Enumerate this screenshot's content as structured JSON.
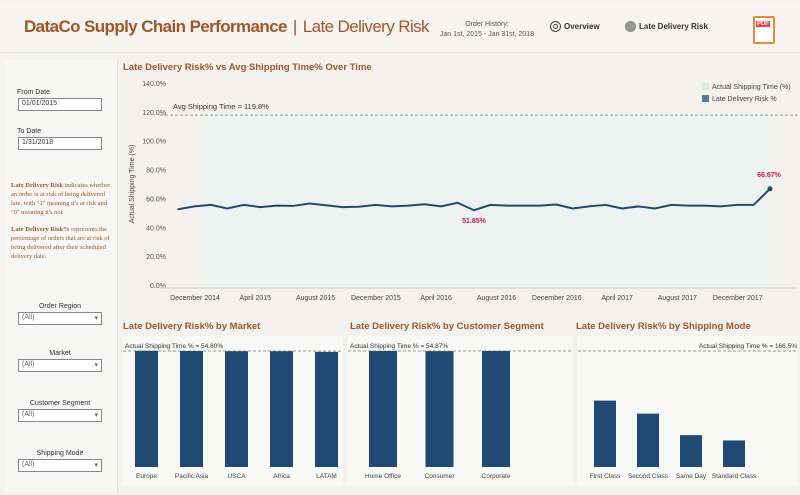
{
  "header": {
    "title": "DataCo Supply Chain Performance",
    "separator": "|",
    "subtitle": "Late Delivery Risk",
    "order_history_label": "Order History:",
    "order_history_range": "Jan 1st, 2015 - Jan 31st, 2018",
    "nav_overview": "Overview",
    "nav_late_delivery": "Late Delivery Risk",
    "pdf_icon_text": "PDF"
  },
  "filters": {
    "from_date_label": "From Date",
    "from_date": "01/01/2015",
    "to_date_label": "To Date",
    "to_date": "1/31/2018",
    "dropdowns": [
      {
        "label": "Order Region",
        "value": "(All)"
      },
      {
        "label": "Market",
        "value": "(All)"
      },
      {
        "label": "Customer Segment",
        "value": "(All)"
      },
      {
        "label": "Shipping Mode",
        "value": "(All)"
      }
    ]
  },
  "notes": {
    "n1_bold": "Late Delivery Risk",
    "n1_text": " indicates whether an order is at risk of being delivered late, with \"1\" meaning it's at risk and \"0\" meaning it's not",
    "n2_bold": "Late Delivery Risk%",
    "n2_text": " represents the percentage of orders that are at risk of being delivered after their scheduled delivery date."
  },
  "colors": {
    "accent": "#a3552a",
    "bar": "#1f4a73",
    "line": "#1f4a73",
    "highlight": "#cc1a55",
    "area": "#eef2f0"
  },
  "chart_data": [
    {
      "type": "line",
      "title": "Late Delivery Risk%  vs  Avg Shipping Time%  Over Time",
      "ylabel": "Actual Shipping Time (%)",
      "ylim": [
        0,
        140
      ],
      "yticks": [
        "0.0%",
        "20.0%",
        "40.0%",
        "60.0%",
        "80.0%",
        "100.0%",
        "120.0%",
        "140.0%"
      ],
      "xticks": [
        "December 2014",
        "April 2015",
        "August 2015",
        "December 2015",
        "April 2016",
        "August 2016",
        "December 2016",
        "April 2017",
        "August 2017",
        "December 2017"
      ],
      "legend": [
        "Actual Shipping Time (%)",
        "Late Delivery Risk %"
      ],
      "legend_position": "top-right",
      "reference_line": {
        "label": "Avg Shipping Time = 119.8%",
        "value": 119.8
      },
      "series": [
        {
          "name": "Late Delivery Risk %",
          "x": [
            "2015-01",
            "2015-02",
            "2015-03",
            "2015-04",
            "2015-05",
            "2015-06",
            "2015-07",
            "2015-08",
            "2015-09",
            "2015-10",
            "2015-11",
            "2015-12",
            "2016-01",
            "2016-02",
            "2016-03",
            "2016-04",
            "2016-05",
            "2016-06",
            "2016-07",
            "2016-08",
            "2016-09",
            "2016-10",
            "2016-11",
            "2016-12",
            "2017-01",
            "2017-02",
            "2017-03",
            "2017-04",
            "2017-05",
            "2017-06",
            "2017-07",
            "2017-08",
            "2017-09",
            "2017-10",
            "2017-11",
            "2017-12",
            "2018-01"
          ],
          "values": [
            52.5,
            54.5,
            55.5,
            53,
            55.5,
            54,
            55,
            54.8,
            56.5,
            55.3,
            54,
            54.2,
            55.5,
            54.5,
            55,
            56,
            54.5,
            57,
            51.85,
            55.5,
            55,
            55,
            55,
            55.8,
            53,
            54.5,
            55.5,
            53,
            54.5,
            53,
            55.5,
            55,
            55,
            54.5,
            55.5,
            55.5,
            66.67
          ]
        }
      ],
      "annotations": [
        {
          "label": "51.85%",
          "index": 18
        },
        {
          "label": "66.67%",
          "index": 36
        }
      ]
    },
    {
      "type": "bar",
      "title": "Late Delivery Risk% by Market",
      "categories": [
        "Europe",
        "Pacific Asia",
        "USCA",
        "Africa",
        "LATAM"
      ],
      "values": [
        54.9,
        54.8,
        54.7,
        54.7,
        54.4
      ],
      "reference_line": {
        "label": "Actual Shipping Time % = 54.80%",
        "value": 54.8
      }
    },
    {
      "type": "bar",
      "title": "Late Delivery Risk% by Customer Segment",
      "categories": [
        "Home Office",
        "Consumer",
        "Corporate"
      ],
      "values": [
        54.9,
        54.8,
        54.9
      ],
      "reference_line": {
        "label": "Actual Shipping Time % = 54.87%",
        "value": 54.87
      }
    },
    {
      "type": "bar",
      "title": "Late Delivery Risk% by Shipping Mode",
      "categories": [
        "First Class",
        "Second Class",
        "Same Day",
        "Standard Class"
      ],
      "values": [
        95.3,
        76.6,
        45.7,
        38.1
      ],
      "reference_line": {
        "label": "Actual Shipping Time % = 166.5%",
        "value": 166.5
      }
    }
  ]
}
